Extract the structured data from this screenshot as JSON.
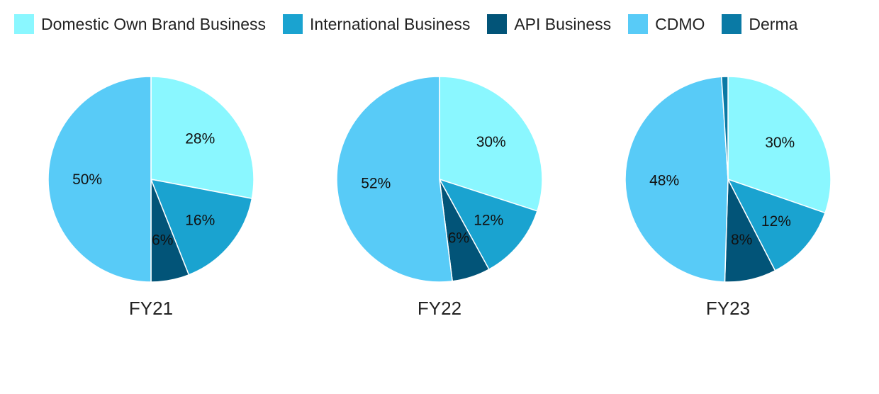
{
  "legend": [
    {
      "label": "Domestic Own Brand Business",
      "color": "#8AF7FF"
    },
    {
      "label": "International Business",
      "color": "#1AA3D0"
    },
    {
      "label": "API Business",
      "color": "#025478"
    },
    {
      "label": "CDMO",
      "color": "#58CBF7"
    },
    {
      "label": "Derma",
      "color": "#0A7AA5"
    }
  ],
  "chart_data": [
    {
      "type": "pie",
      "title": "FY21",
      "categories": [
        "Domestic Own Brand Business",
        "International Business",
        "API Business",
        "CDMO",
        "Derma"
      ],
      "values": [
        28,
        16,
        6,
        50,
        0
      ],
      "labels": [
        "28%",
        "16%",
        "6%",
        "50%",
        ""
      ],
      "legend_position": "top"
    },
    {
      "type": "pie",
      "title": "FY22",
      "categories": [
        "Domestic Own Brand Business",
        "International Business",
        "API Business",
        "CDMO",
        "Derma"
      ],
      "values": [
        30,
        12,
        6,
        52,
        0
      ],
      "labels": [
        "30%",
        "12%",
        "6%",
        "52%",
        ""
      ],
      "legend_position": "top"
    },
    {
      "type": "pie",
      "title": "FY23",
      "categories": [
        "Domestic Own Brand Business",
        "International Business",
        "API Business",
        "CDMO",
        "Derma"
      ],
      "values": [
        30,
        12,
        8,
        48,
        1
      ],
      "labels": [
        "30%",
        "12%",
        "8%",
        "48%",
        ""
      ],
      "legend_position": "top"
    }
  ]
}
